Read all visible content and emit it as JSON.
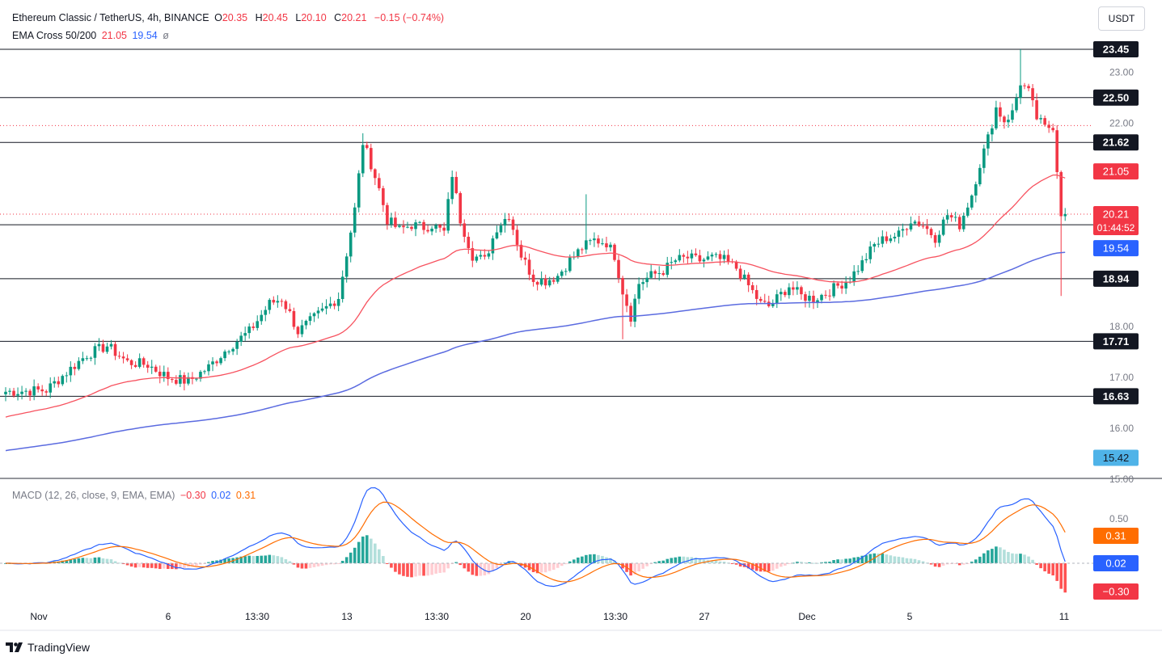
{
  "header": {
    "symbol": "Ethereum Classic / TetherUS, 4h, BINANCE",
    "open_label": "O",
    "open": "20.35",
    "high_label": "H",
    "high": "20.45",
    "low_label": "L",
    "low": "20.10",
    "close_label": "C",
    "close": "20.21",
    "change": "−0.15 (−0.74%)"
  },
  "ema_legend": {
    "name": "EMA Cross 50/200",
    "ema50": "21.05",
    "ema200": "19.54",
    "symbol": "ø"
  },
  "macd_legend": {
    "name": "MACD (12, 26, close, 9, EMA, EMA)",
    "hist": "−0.30",
    "macd": "0.02",
    "signal": "0.31"
  },
  "currency_button": "USDT",
  "brand": "TradingView",
  "colors": {
    "up": "#089981",
    "down": "#f23645",
    "ema50": "#f7525f",
    "ema200": "#5b6be0",
    "macd": "#2962ff",
    "signal": "#ff6d00",
    "level": "#131722"
  },
  "chart_data": [
    {
      "type": "candlestick",
      "title": "Ethereum Classic / TetherUS, 4h, BINANCE",
      "ylim": [
        15.0,
        23.6
      ],
      "y_ticks": [
        "23.00",
        "22.00",
        "18.00",
        "17.00",
        "16.00",
        "15.00"
      ],
      "x_ticks": [
        "Nov",
        "6",
        "13:30",
        "13",
        "13:30",
        "20",
        "13:30",
        "27",
        "Dec",
        "5",
        "11"
      ],
      "horizontal_levels": [
        "23.45",
        "22.50",
        "21.62",
        "20.00",
        "18.94",
        "17.71",
        "16.63"
      ],
      "price_labels": [
        {
          "value": "21.05",
          "series": "EMA 50"
        },
        {
          "value": "20.21",
          "series": "last price",
          "countdown": "01:44:52"
        },
        {
          "value": "19.54",
          "series": "EMA 200"
        },
        {
          "value": "15.42",
          "series": "scale"
        }
      ],
      "close_trajectory": [
        [
          0,
          16.72
        ],
        [
          10,
          16.75
        ],
        [
          20,
          17.45
        ],
        [
          25,
          17.62
        ],
        [
          30,
          17.3
        ],
        [
          35,
          17.25
        ],
        [
          40,
          17.0
        ],
        [
          45,
          16.92
        ],
        [
          50,
          17.2
        ],
        [
          55,
          17.6
        ],
        [
          60,
          17.9
        ],
        [
          65,
          18.45
        ],
        [
          68,
          18.55
        ],
        [
          70,
          18.25
        ],
        [
          72,
          17.9
        ],
        [
          75,
          18.1
        ],
        [
          78,
          18.3
        ],
        [
          82,
          18.58
        ],
        [
          86,
          20.3
        ],
        [
          88,
          21.62
        ],
        [
          90,
          21.2
        ],
        [
          92,
          20.7
        ],
        [
          94,
          20.1
        ],
        [
          97,
          19.9
        ],
        [
          100,
          20.0
        ],
        [
          103,
          19.95
        ],
        [
          105,
          20.0
        ],
        [
          108,
          19.85
        ],
        [
          110,
          21.0
        ],
        [
          112,
          20.1
        ],
        [
          115,
          19.4
        ],
        [
          118,
          19.3
        ],
        [
          121,
          19.95
        ],
        [
          124,
          20.2
        ],
        [
          127,
          19.4
        ],
        [
          130,
          18.95
        ],
        [
          133,
          18.9
        ],
        [
          136,
          19.0
        ],
        [
          139,
          19.3
        ],
        [
          142,
          19.55
        ],
        [
          145,
          19.7
        ],
        [
          148,
          19.65
        ],
        [
          150,
          19.4
        ],
        [
          152,
          18.7
        ],
        [
          154,
          18.2
        ],
        [
          156,
          18.85
        ],
        [
          159,
          19.0
        ],
        [
          162,
          19.1
        ],
        [
          165,
          19.3
        ],
        [
          168,
          19.35
        ],
        [
          171,
          19.3
        ],
        [
          174,
          19.35
        ],
        [
          177,
          19.3
        ],
        [
          180,
          19.15
        ],
        [
          183,
          18.8
        ],
        [
          186,
          18.45
        ],
        [
          188,
          18.4
        ],
        [
          190,
          18.55
        ],
        [
          193,
          18.8
        ],
        [
          196,
          18.6
        ],
        [
          199,
          18.55
        ],
        [
          202,
          18.65
        ],
        [
          205,
          18.8
        ],
        [
          208,
          18.95
        ],
        [
          211,
          19.25
        ],
        [
          214,
          19.6
        ],
        [
          217,
          19.75
        ],
        [
          220,
          19.8
        ],
        [
          223,
          20.1
        ],
        [
          226,
          20.0
        ],
        [
          229,
          19.75
        ],
        [
          232,
          20.2
        ],
        [
          235,
          20.0
        ],
        [
          238,
          20.6
        ],
        [
          240,
          21.2
        ],
        [
          242,
          21.7
        ],
        [
          244,
          22.3
        ],
        [
          246,
          22.05
        ],
        [
          248,
          22.2
        ],
        [
          250,
          22.8
        ],
        [
          252,
          22.6
        ],
        [
          254,
          22.1
        ],
        [
          256,
          21.9
        ],
        [
          258,
          21.95
        ],
        [
          260,
          20.25
        ],
        [
          261,
          20.21
        ]
      ]
    },
    {
      "type": "line",
      "title": "MACD (12, 26, close, 9, EMA, EMA)",
      "y_ticks": [
        "0.50"
      ],
      "value_labels": [
        "0.31",
        "0.02",
        "−0.30"
      ],
      "series": [
        {
          "name": "MACD",
          "value": "0.02"
        },
        {
          "name": "Signal",
          "value": "0.31"
        },
        {
          "name": "Histogram",
          "value": "−0.30"
        }
      ]
    }
  ]
}
